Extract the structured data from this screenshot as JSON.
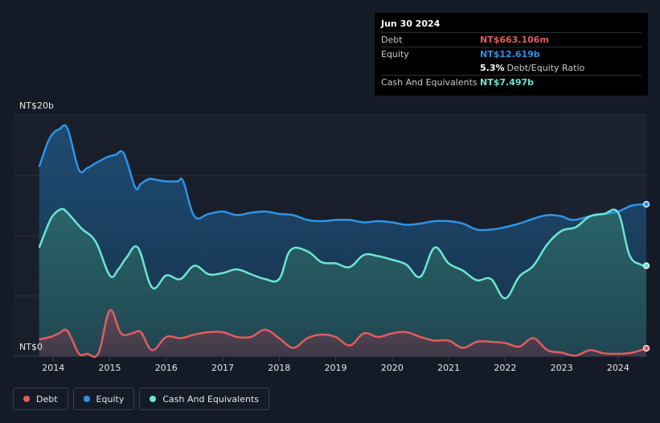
{
  "tooltip": {
    "date": "Jun 30 2024",
    "debt_label": "Debt",
    "debt_value": "NT$663.106m",
    "equity_label": "Equity",
    "equity_value": "NT$12.619b",
    "ratio_value": "5.3%",
    "ratio_label": "Debt/Equity Ratio",
    "cash_label": "Cash And Equivalents",
    "cash_value": "NT$7.497b"
  },
  "colors": {
    "debt": "#e25c5f",
    "equity": "#2e93e6",
    "cash": "#6ce6d0"
  },
  "legend": [
    {
      "label": "Debt",
      "color": "#e25c5f"
    },
    {
      "label": "Equity",
      "color": "#2e93e6"
    },
    {
      "label": "Cash And Equivalents",
      "color": "#6ce6d0"
    }
  ],
  "chart_data": {
    "type": "area",
    "y_axis_labels": {
      "top": "NT$20b",
      "bottom": "NT$0"
    },
    "ylim": [
      0,
      20
    ],
    "xlim": [
      2013.74,
      2024.5
    ],
    "x_ticks": [
      "2014",
      "2015",
      "2016",
      "2017",
      "2018",
      "2019",
      "2020",
      "2021",
      "2022",
      "2023",
      "2024"
    ],
    "series": [
      {
        "name": "Equity",
        "points": [
          [
            2013.75,
            15.7
          ],
          [
            2013.9,
            17.7
          ],
          [
            2014.0,
            18.5
          ],
          [
            2014.1,
            18.8
          ],
          [
            2014.25,
            18.9
          ],
          [
            2014.45,
            15.5
          ],
          [
            2014.6,
            15.6
          ],
          [
            2014.75,
            16.0
          ],
          [
            2014.95,
            16.5
          ],
          [
            2015.1,
            16.7
          ],
          [
            2015.25,
            16.8
          ],
          [
            2015.45,
            14.0
          ],
          [
            2015.55,
            14.3
          ],
          [
            2015.7,
            14.7
          ],
          [
            2015.85,
            14.6
          ],
          [
            2016.0,
            14.5
          ],
          [
            2016.2,
            14.5
          ],
          [
            2016.3,
            14.5
          ],
          [
            2016.5,
            11.6
          ],
          [
            2016.75,
            11.8
          ],
          [
            2017.0,
            12.0
          ],
          [
            2017.25,
            11.7
          ],
          [
            2017.5,
            11.9
          ],
          [
            2017.75,
            12.0
          ],
          [
            2018.0,
            11.8
          ],
          [
            2018.25,
            11.7
          ],
          [
            2018.5,
            11.3
          ],
          [
            2018.75,
            11.2
          ],
          [
            2019.0,
            11.3
          ],
          [
            2019.25,
            11.3
          ],
          [
            2019.5,
            11.1
          ],
          [
            2019.75,
            11.2
          ],
          [
            2020.0,
            11.1
          ],
          [
            2020.25,
            10.9
          ],
          [
            2020.5,
            11.0
          ],
          [
            2020.75,
            11.2
          ],
          [
            2021.0,
            11.2
          ],
          [
            2021.25,
            11.0
          ],
          [
            2021.5,
            10.5
          ],
          [
            2021.75,
            10.5
          ],
          [
            2022.0,
            10.7
          ],
          [
            2022.25,
            11.0
          ],
          [
            2022.5,
            11.4
          ],
          [
            2022.75,
            11.7
          ],
          [
            2023.0,
            11.6
          ],
          [
            2023.2,
            11.3
          ],
          [
            2023.5,
            11.6
          ],
          [
            2023.75,
            11.8
          ],
          [
            2024.0,
            12.0
          ],
          [
            2024.25,
            12.5
          ],
          [
            2024.5,
            12.6
          ]
        ]
      },
      {
        "name": "Cash And Equivalents",
        "points": [
          [
            2013.75,
            9.0
          ],
          [
            2013.9,
            10.8
          ],
          [
            2014.0,
            11.7
          ],
          [
            2014.15,
            12.2
          ],
          [
            2014.25,
            11.9
          ],
          [
            2014.5,
            10.6
          ],
          [
            2014.75,
            9.5
          ],
          [
            2015.0,
            6.7
          ],
          [
            2015.15,
            7.2
          ],
          [
            2015.3,
            8.2
          ],
          [
            2015.5,
            9.0
          ],
          [
            2015.75,
            5.7
          ],
          [
            2016.0,
            6.7
          ],
          [
            2016.25,
            6.4
          ],
          [
            2016.5,
            7.5
          ],
          [
            2016.75,
            6.8
          ],
          [
            2017.0,
            6.9
          ],
          [
            2017.25,
            7.2
          ],
          [
            2017.5,
            6.8
          ],
          [
            2017.75,
            6.4
          ],
          [
            2018.0,
            6.4
          ],
          [
            2018.2,
            8.8
          ],
          [
            2018.5,
            8.7
          ],
          [
            2018.75,
            7.8
          ],
          [
            2019.0,
            7.7
          ],
          [
            2019.25,
            7.4
          ],
          [
            2019.5,
            8.4
          ],
          [
            2019.75,
            8.3
          ],
          [
            2020.0,
            8.0
          ],
          [
            2020.25,
            7.6
          ],
          [
            2020.5,
            6.6
          ],
          [
            2020.75,
            9.0
          ],
          [
            2021.0,
            7.7
          ],
          [
            2021.25,
            7.1
          ],
          [
            2021.5,
            6.3
          ],
          [
            2021.75,
            6.4
          ],
          [
            2022.0,
            4.8
          ],
          [
            2022.25,
            6.6
          ],
          [
            2022.5,
            7.5
          ],
          [
            2022.75,
            9.3
          ],
          [
            2023.0,
            10.4
          ],
          [
            2023.25,
            10.7
          ],
          [
            2023.5,
            11.6
          ],
          [
            2023.75,
            11.8
          ],
          [
            2024.0,
            11.9
          ],
          [
            2024.2,
            8.4
          ],
          [
            2024.4,
            7.6
          ],
          [
            2024.5,
            7.5
          ]
        ]
      },
      {
        "name": "Debt",
        "points": [
          [
            2013.75,
            1.4
          ],
          [
            2013.95,
            1.6
          ],
          [
            2014.1,
            1.9
          ],
          [
            2014.25,
            2.1
          ],
          [
            2014.45,
            0.25
          ],
          [
            2014.6,
            0.2
          ],
          [
            2014.8,
            0.25
          ],
          [
            2015.0,
            3.8
          ],
          [
            2015.2,
            1.9
          ],
          [
            2015.4,
            1.9
          ],
          [
            2015.55,
            2.0
          ],
          [
            2015.75,
            0.5
          ],
          [
            2016.0,
            1.6
          ],
          [
            2016.25,
            1.5
          ],
          [
            2016.5,
            1.8
          ],
          [
            2016.75,
            2.0
          ],
          [
            2017.0,
            2.0
          ],
          [
            2017.25,
            1.6
          ],
          [
            2017.5,
            1.6
          ],
          [
            2017.75,
            2.2
          ],
          [
            2018.0,
            1.5
          ],
          [
            2018.25,
            0.7
          ],
          [
            2018.5,
            1.5
          ],
          [
            2018.75,
            1.8
          ],
          [
            2019.0,
            1.6
          ],
          [
            2019.25,
            0.9
          ],
          [
            2019.5,
            1.9
          ],
          [
            2019.75,
            1.6
          ],
          [
            2020.0,
            1.9
          ],
          [
            2020.25,
            2.0
          ],
          [
            2020.5,
            1.6
          ],
          [
            2020.75,
            1.3
          ],
          [
            2021.0,
            1.3
          ],
          [
            2021.25,
            0.7
          ],
          [
            2021.5,
            1.2
          ],
          [
            2021.75,
            1.2
          ],
          [
            2022.0,
            1.1
          ],
          [
            2022.25,
            0.8
          ],
          [
            2022.5,
            1.5
          ],
          [
            2022.75,
            0.5
          ],
          [
            2023.0,
            0.3
          ],
          [
            2023.25,
            0.05
          ],
          [
            2023.5,
            0.5
          ],
          [
            2023.75,
            0.25
          ],
          [
            2024.0,
            0.2
          ],
          [
            2024.25,
            0.3
          ],
          [
            2024.5,
            0.66
          ]
        ]
      }
    ],
    "grid": true,
    "legend_position": "bottom-left"
  }
}
